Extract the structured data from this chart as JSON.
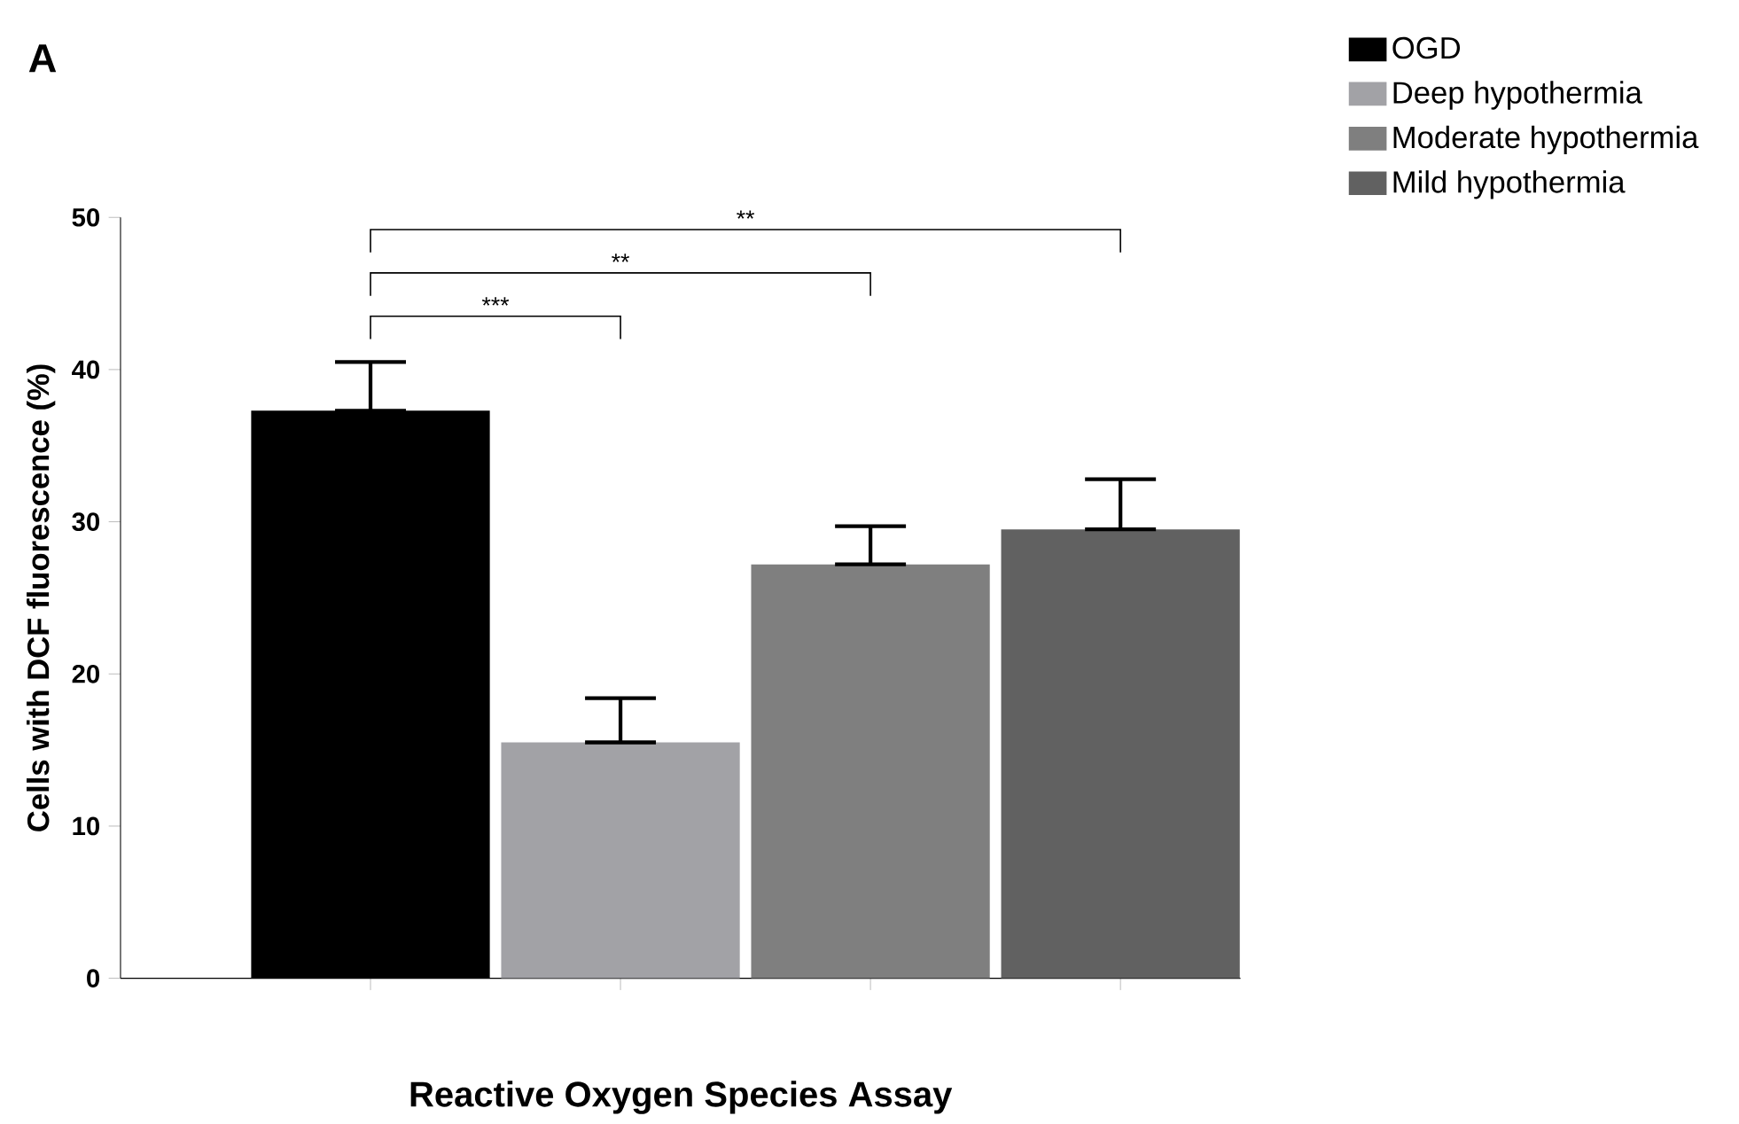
{
  "chart_data": {
    "type": "bar",
    "xlabel": "Reactive Oxygen Species Assay",
    "ylabel": "Cells with DCF fluorescence (%)",
    "categories": [
      null,
      null,
      null,
      null
    ],
    "series": [
      {
        "name": "OGD",
        "color": "#000000",
        "values": [
          37.3,
          null,
          null,
          null
        ],
        "errors": [
          [
            37.3,
            40.5
          ],
          null,
          null,
          null
        ]
      },
      {
        "name": "Deep hypothermia",
        "color": "#a2a2a6",
        "values": [
          null,
          15.5,
          null,
          null
        ],
        "errors": [
          null,
          [
            15.5,
            18.4
          ],
          null,
          null
        ]
      },
      {
        "name": "Moderate hypothermia",
        "color": "#7f7f7f",
        "values": [
          null,
          null,
          27.2,
          null
        ],
        "errors": [
          null,
          null,
          [
            27.2,
            29.7
          ],
          null
        ]
      },
      {
        "name": "Mild hypothermia",
        "color": "#616161",
        "values": [
          null,
          null,
          null,
          29.5
        ],
        "errors": [
          null,
          null,
          null,
          [
            29.5,
            32.8
          ]
        ]
      }
    ],
    "ylim": [
      0,
      50
    ],
    "yticks": [
      0,
      10,
      20,
      30,
      40,
      50
    ],
    "grid": false,
    "legend": "top right",
    "annotations": [
      "A",
      "***",
      "**",
      "**"
    ]
  }
}
